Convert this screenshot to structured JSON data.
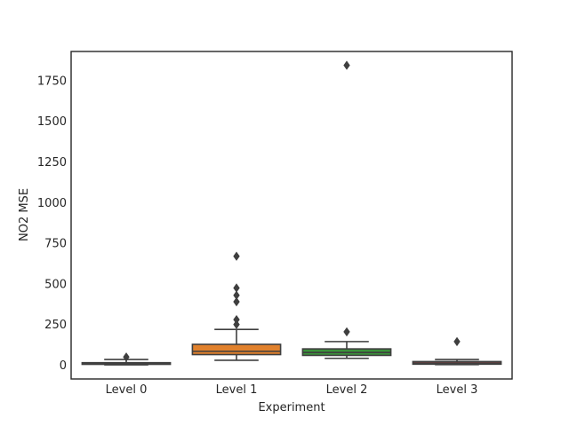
{
  "chart_data": {
    "type": "box",
    "title": "",
    "xlabel": "Experiment",
    "ylabel": "NO2 MSE",
    "ylim": [
      -85,
      1930
    ],
    "yticks": [
      0,
      250,
      500,
      750,
      1000,
      1250,
      1500,
      1750
    ],
    "ytick_labels": [
      "0",
      "250",
      "500",
      "750",
      "1000",
      "1250",
      "1500",
      "1750"
    ],
    "grid": false,
    "categories": [
      "Level 0",
      "Level 1",
      "Level 2",
      "Level 3"
    ],
    "boxes": [
      {
        "category": "Level 0",
        "color": "#3274a1",
        "whisker_low": 2,
        "q1": 5,
        "median": 10,
        "q3": 15,
        "whisker_high": 35,
        "outliers": [
          50
        ]
      },
      {
        "category": "Level 1",
        "color": "#e1812c",
        "whisker_low": 30,
        "q1": 65,
        "median": 85,
        "q3": 128,
        "whisker_high": 220,
        "outliers": [
          250,
          280,
          390,
          430,
          475,
          670
        ]
      },
      {
        "category": "Level 2",
        "color": "#3a923a",
        "whisker_low": 42,
        "q1": 60,
        "median": 78,
        "q3": 100,
        "whisker_high": 145,
        "outliers": [
          205,
          1845
        ]
      },
      {
        "category": "Level 3",
        "color": "#c03d3e",
        "whisker_low": 3,
        "q1": 6,
        "median": 12,
        "q3": 22,
        "whisker_high": 35,
        "outliers": [
          145
        ]
      }
    ]
  }
}
